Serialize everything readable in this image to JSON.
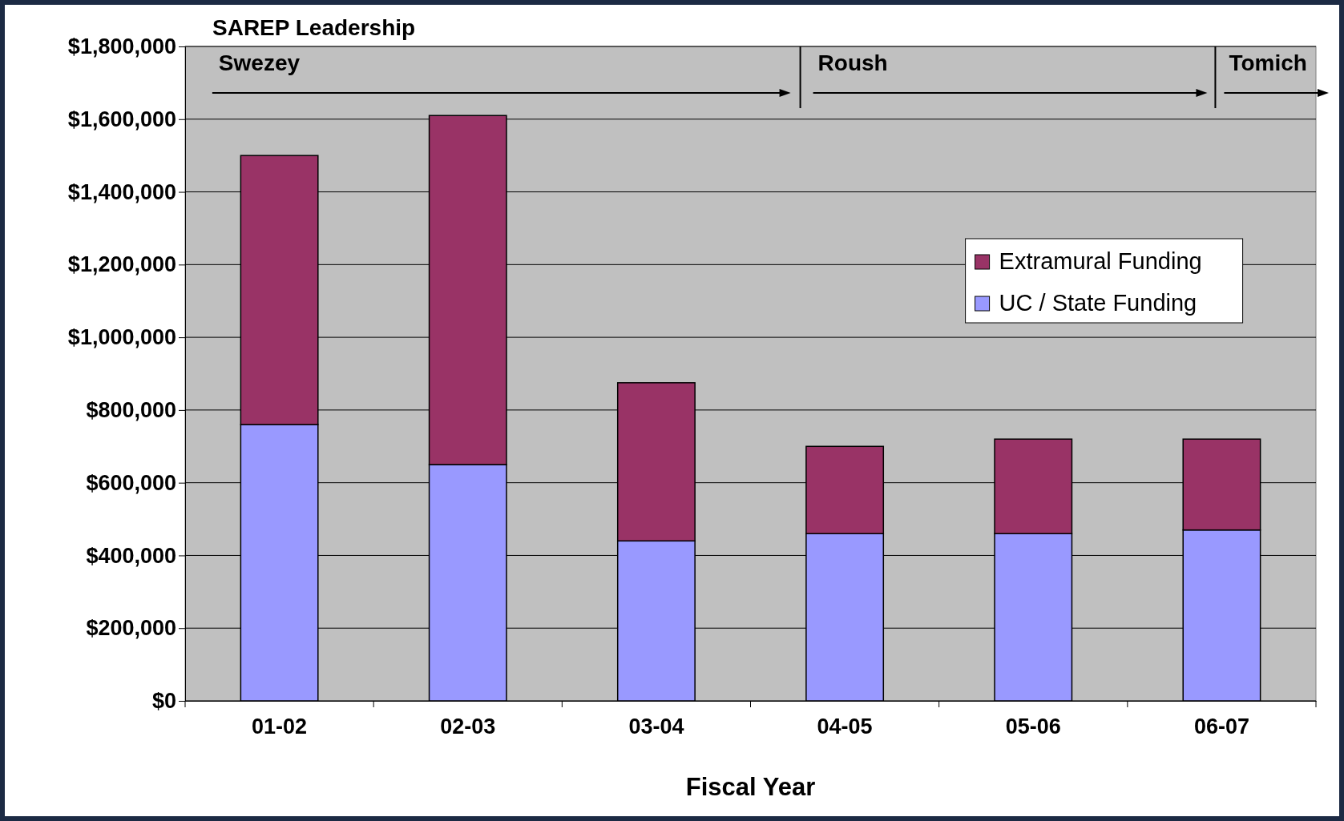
{
  "chart_data": {
    "type": "bar",
    "stacked": true,
    "xlabel": "Fiscal Year",
    "categories": [
      "01-02",
      "02-03",
      "03-04",
      "04-05",
      "05-06",
      "06-07"
    ],
    "series": [
      {
        "name": "UC / State Funding",
        "color": "#9999ff",
        "values": [
          760000,
          650000,
          440000,
          460000,
          460000,
          470000
        ]
      },
      {
        "name": "Extramural Funding",
        "color": "#993366",
        "values": [
          740000,
          960000,
          435000,
          240000,
          260000,
          250000
        ]
      }
    ],
    "ylim": [
      0,
      1800000
    ],
    "yticks": [
      {
        "value": 0,
        "label": "$0"
      },
      {
        "value": 200000,
        "label": "$200,000"
      },
      {
        "value": 400000,
        "label": "$400,000"
      },
      {
        "value": 600000,
        "label": "$600,000"
      },
      {
        "value": 800000,
        "label": "$800,000"
      },
      {
        "value": 1000000,
        "label": "$1,000,000"
      },
      {
        "value": 1200000,
        "label": "$1,200,000"
      },
      {
        "value": 1400000,
        "label": "$1,400,000"
      },
      {
        "value": 1600000,
        "label": "$1,600,000"
      },
      {
        "value": 1800000,
        "label": "$1,800,000"
      }
    ],
    "grid": "y",
    "legend": "right",
    "annotations": [
      "SAREP Leadership",
      "Swezey",
      "Roush",
      "Tomich"
    ]
  }
}
